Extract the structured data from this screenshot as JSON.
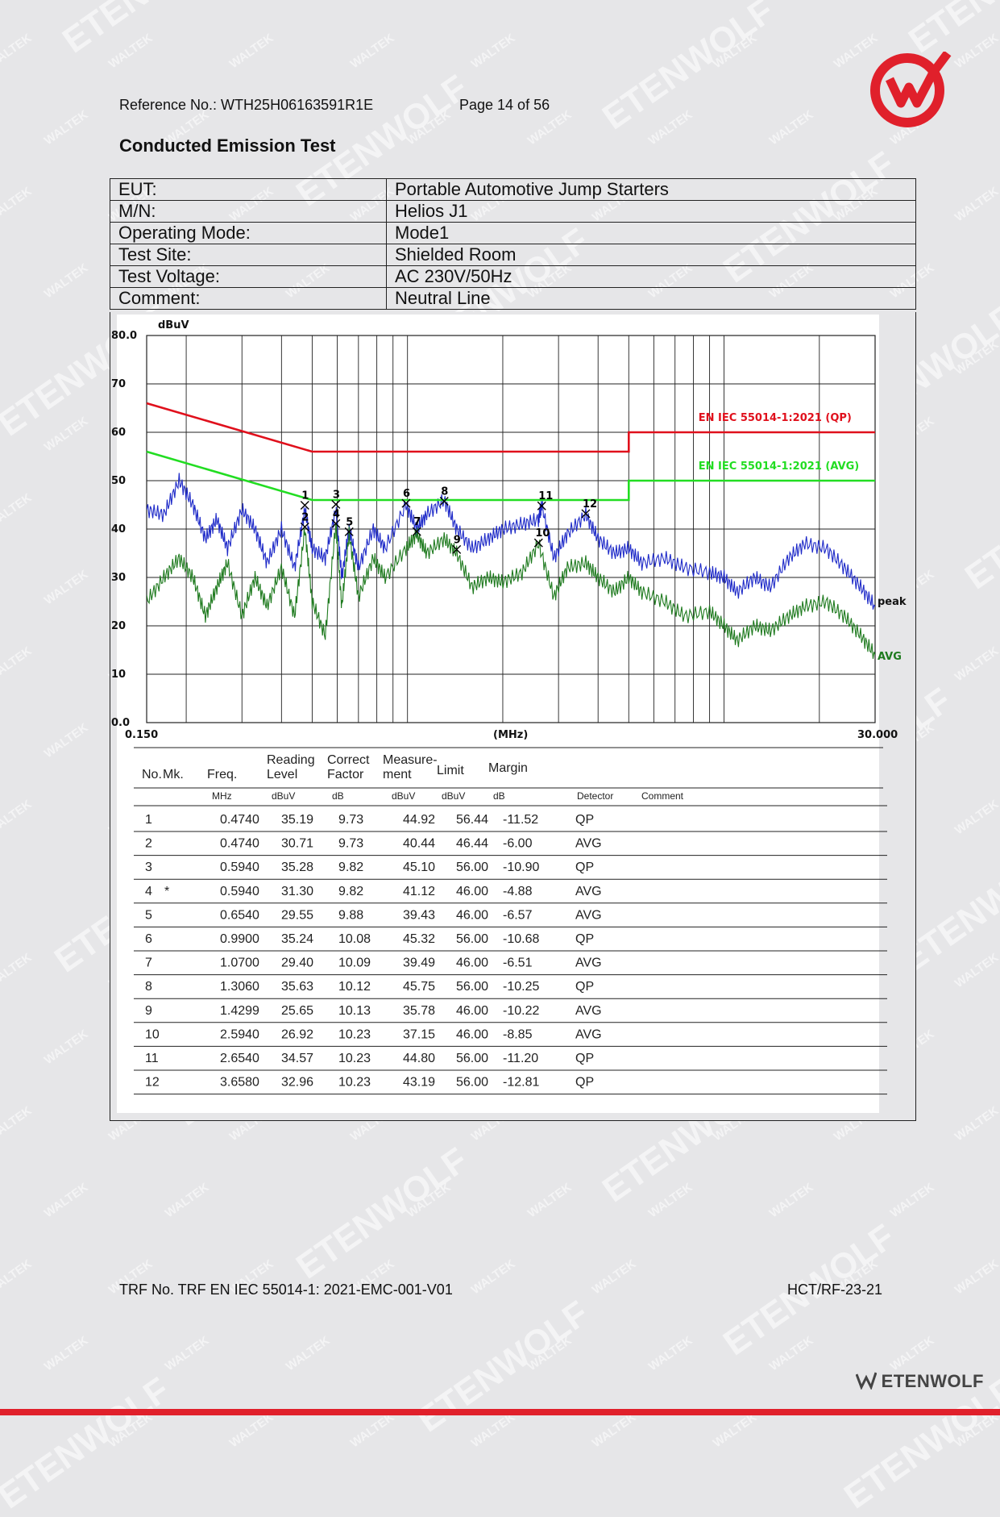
{
  "header": {
    "reference": "Reference No.: WTH25H06163591R1E",
    "page": "Page 14 of 56"
  },
  "section_title": "Conducted Emission Test",
  "info": [
    {
      "label": "EUT:",
      "value": "Portable Automotive Jump Starters"
    },
    {
      "label": "M/N:",
      "value": "Helios J1"
    },
    {
      "label": "Operating Mode:",
      "value": "Mode1"
    },
    {
      "label": "Test Site:",
      "value": "Shielded Room"
    },
    {
      "label": "Test Voltage:",
      "value": "AC 230V/50Hz"
    },
    {
      "label": "Comment:",
      "value": "Neutral Line"
    }
  ],
  "chart_data": {
    "type": "line",
    "ylabel": "dBuV",
    "xlabel": "(MHz)",
    "x_scale": "log",
    "xlim": [
      0.15,
      30.0
    ],
    "ylim": [
      0,
      80
    ],
    "x_tick_labels": [
      "0.150",
      "30.000"
    ],
    "y_ticks": [
      {
        "v": 80,
        "label": "80.0"
      },
      {
        "v": 70,
        "label": "70"
      },
      {
        "v": 60,
        "label": "60"
      },
      {
        "v": 50,
        "label": "50"
      },
      {
        "v": 40,
        "label": "40"
      },
      {
        "v": 30,
        "label": "30"
      },
      {
        "v": 20,
        "label": "20"
      },
      {
        "v": 10,
        "label": "10"
      },
      {
        "v": 0,
        "label": "0.0"
      }
    ],
    "grid": true,
    "limit_lines": [
      {
        "name": "EN IEC 55014-1:2021 (QP)",
        "color": "#e0101c",
        "points": [
          [
            0.15,
            66
          ],
          [
            0.5,
            56
          ],
          [
            5.0,
            56
          ],
          [
            5.0,
            60
          ],
          [
            30.0,
            60
          ]
        ]
      },
      {
        "name": "EN IEC 55014-1:2021 (AVG)",
        "color": "#22dd22",
        "points": [
          [
            0.15,
            56
          ],
          [
            0.5,
            46
          ],
          [
            5.0,
            46
          ],
          [
            5.0,
            50
          ],
          [
            30.0,
            50
          ]
        ]
      }
    ],
    "series": [
      {
        "name": "peak",
        "color": "#1e2ac8",
        "points": [
          [
            0.15,
            44
          ],
          [
            0.17,
            43
          ],
          [
            0.19,
            50
          ],
          [
            0.21,
            45
          ],
          [
            0.23,
            38
          ],
          [
            0.25,
            42
          ],
          [
            0.27,
            36
          ],
          [
            0.3,
            44
          ],
          [
            0.33,
            40
          ],
          [
            0.36,
            33
          ],
          [
            0.4,
            40
          ],
          [
            0.44,
            32
          ],
          [
            0.474,
            44
          ],
          [
            0.5,
            36
          ],
          [
            0.55,
            34
          ],
          [
            0.594,
            44
          ],
          [
            0.62,
            30
          ],
          [
            0.654,
            40
          ],
          [
            0.7,
            32
          ],
          [
            0.78,
            40
          ],
          [
            0.85,
            36
          ],
          [
            0.99,
            45
          ],
          [
            1.07,
            40
          ],
          [
            1.15,
            43
          ],
          [
            1.306,
            46
          ],
          [
            1.43,
            40
          ],
          [
            1.6,
            36
          ],
          [
            1.8,
            38
          ],
          [
            2.0,
            40
          ],
          [
            2.3,
            41
          ],
          [
            2.594,
            42
          ],
          [
            2.654,
            45
          ],
          [
            2.9,
            34
          ],
          [
            3.2,
            39
          ],
          [
            3.658,
            43
          ],
          [
            4.0,
            38
          ],
          [
            4.5,
            35
          ],
          [
            5.0,
            36
          ],
          [
            5.5,
            33
          ],
          [
            6.5,
            34
          ],
          [
            7.5,
            32
          ],
          [
            9.0,
            31
          ],
          [
            10,
            30
          ],
          [
            11,
            27
          ],
          [
            12.5,
            30
          ],
          [
            14,
            28
          ],
          [
            16,
            34
          ],
          [
            18,
            37
          ],
          [
            21,
            36
          ],
          [
            24,
            32
          ],
          [
            27,
            28
          ],
          [
            30,
            24
          ]
        ]
      },
      {
        "name": "AVG",
        "color": "#1e7a1e",
        "points": [
          [
            0.15,
            25
          ],
          [
            0.17,
            30
          ],
          [
            0.19,
            34
          ],
          [
            0.21,
            30
          ],
          [
            0.23,
            22
          ],
          [
            0.25,
            28
          ],
          [
            0.27,
            33
          ],
          [
            0.3,
            22
          ],
          [
            0.33,
            30
          ],
          [
            0.36,
            24
          ],
          [
            0.4,
            32
          ],
          [
            0.44,
            22
          ],
          [
            0.474,
            40
          ],
          [
            0.5,
            25
          ],
          [
            0.55,
            18
          ],
          [
            0.594,
            41
          ],
          [
            0.62,
            24
          ],
          [
            0.654,
            39
          ],
          [
            0.7,
            26
          ],
          [
            0.78,
            34
          ],
          [
            0.85,
            30
          ],
          [
            0.99,
            36
          ],
          [
            1.07,
            39
          ],
          [
            1.15,
            35
          ],
          [
            1.306,
            38
          ],
          [
            1.43,
            35
          ],
          [
            1.6,
            28
          ],
          [
            1.8,
            30
          ],
          [
            2.0,
            29
          ],
          [
            2.3,
            31
          ],
          [
            2.594,
            37
          ],
          [
            2.9,
            26
          ],
          [
            3.2,
            32
          ],
          [
            3.658,
            33
          ],
          [
            4.0,
            30
          ],
          [
            4.5,
            27
          ],
          [
            5.0,
            30
          ],
          [
            5.5,
            27
          ],
          [
            6.5,
            25
          ],
          [
            7.5,
            22
          ],
          [
            9.0,
            23
          ],
          [
            10,
            20
          ],
          [
            11,
            17
          ],
          [
            12.5,
            20
          ],
          [
            14,
            19
          ],
          [
            16,
            22
          ],
          [
            18,
            24
          ],
          [
            21,
            25
          ],
          [
            24,
            22
          ],
          [
            27,
            18
          ],
          [
            30,
            14
          ]
        ]
      }
    ],
    "marks": [
      {
        "n": "1",
        "x": 0.474,
        "y": 44.92
      },
      {
        "n": "2",
        "x": 0.474,
        "y": 40.44
      },
      {
        "n": "3",
        "x": 0.594,
        "y": 45.1
      },
      {
        "n": "4",
        "x": 0.594,
        "y": 41.12
      },
      {
        "n": "5",
        "x": 0.654,
        "y": 39.43
      },
      {
        "n": "6",
        "x": 0.99,
        "y": 45.32
      },
      {
        "n": "7",
        "x": 1.07,
        "y": 39.49
      },
      {
        "n": "8",
        "x": 1.306,
        "y": 45.75
      },
      {
        "n": "9",
        "x": 1.4299,
        "y": 35.78
      },
      {
        "n": "10",
        "x": 2.594,
        "y": 37.15
      },
      {
        "n": "11",
        "x": 2.654,
        "y": 44.8
      },
      {
        "n": "12",
        "x": 3.658,
        "y": 43.19
      }
    ],
    "table": {
      "headers": [
        "No.",
        "Mk.",
        "Freq.",
        "Reading Level",
        "Correct Factor",
        "Measure-ment",
        "Limit",
        "Margin",
        "",
        ""
      ],
      "units": [
        "",
        "",
        "MHz",
        "dBuV",
        "dB",
        "dBuV",
        "dBuV",
        "dB",
        "Detector",
        "Comment"
      ],
      "rows": [
        [
          "1",
          "",
          "0.4740",
          "35.19",
          "9.73",
          "44.92",
          "56.44",
          "-11.52",
          "QP"
        ],
        [
          "2",
          "",
          "0.4740",
          "30.71",
          "9.73",
          "40.44",
          "46.44",
          "-6.00",
          "AVG"
        ],
        [
          "3",
          "",
          "0.5940",
          "35.28",
          "9.82",
          "45.10",
          "56.00",
          "-10.90",
          "QP"
        ],
        [
          "4",
          "*",
          "0.5940",
          "31.30",
          "9.82",
          "41.12",
          "46.00",
          "-4.88",
          "AVG"
        ],
        [
          "5",
          "",
          "0.6540",
          "29.55",
          "9.88",
          "39.43",
          "46.00",
          "-6.57",
          "AVG"
        ],
        [
          "6",
          "",
          "0.9900",
          "35.24",
          "10.08",
          "45.32",
          "56.00",
          "-10.68",
          "QP"
        ],
        [
          "7",
          "",
          "1.0700",
          "29.40",
          "10.09",
          "39.49",
          "46.00",
          "-6.51",
          "AVG"
        ],
        [
          "8",
          "",
          "1.3060",
          "35.63",
          "10.12",
          "45.75",
          "56.00",
          "-10.25",
          "QP"
        ],
        [
          "9",
          "",
          "1.4299",
          "25.65",
          "10.13",
          "35.78",
          "46.00",
          "-10.22",
          "AVG"
        ],
        [
          "10",
          "",
          "2.5940",
          "26.92",
          "10.23",
          "37.15",
          "46.00",
          "-8.85",
          "AVG"
        ],
        [
          "11",
          "",
          "2.6540",
          "34.57",
          "10.23",
          "44.80",
          "56.00",
          "-11.20",
          "QP"
        ],
        [
          "12",
          "",
          "3.6580",
          "32.96",
          "10.23",
          "43.19",
          "56.00",
          "-12.81",
          "QP"
        ]
      ]
    }
  },
  "footer": {
    "trf": "TRF No. TRF EN IEC 55014-1: 2021-EMC-001-V01",
    "code": "HCT/RF-23-21",
    "brand": "ETENWOLF"
  },
  "watermarks": [
    "WALTEK",
    "ETENWOLF"
  ],
  "colors": {
    "accent": "#e0202b",
    "page_bg": "#e6e6e8"
  }
}
